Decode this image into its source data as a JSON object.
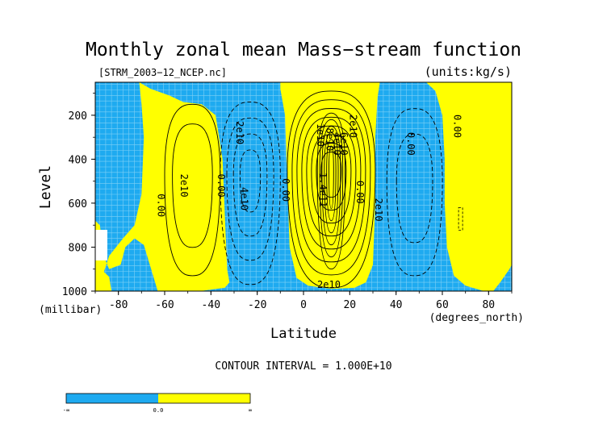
{
  "chart_data": {
    "type": "contour",
    "title": "Monthly zonal mean Mass−stream function",
    "subtitle_left": "[STRM_2003−12_NCEP.nc]",
    "subtitle_right": "(units:kg/s)",
    "xlabel": "Latitude",
    "xunits": "(degrees_north)",
    "ylabel": "Level",
    "yunits": "(millibar)",
    "xlim": [
      -90,
      90
    ],
    "ylim": [
      1000,
      50
    ],
    "xticks": [
      -80,
      -60,
      -40,
      -20,
      0,
      20,
      40,
      60,
      80
    ],
    "yticks": [
      200,
      400,
      600,
      800,
      1000
    ],
    "contour_interval": "CONTOUR INTERVAL = 1.000E+10",
    "colors": {
      "negative": "#1eaaf0",
      "positive": "#ffff00",
      "grid": "#7fd0f5"
    },
    "colorbar": {
      "min_label": "-∞",
      "mid_label": "0.0",
      "max_label": "∞"
    },
    "cells": [
      {
        "name": "southern-positive-cell",
        "sign": "positive",
        "lat_center": -48,
        "lev_center": 470,
        "levels": [
          10000000000.0,
          20000000000.0
        ]
      },
      {
        "name": "southern-negative-cell",
        "sign": "negative",
        "lat_center": -23,
        "lev_center": 470,
        "levels": [
          -10000000000.0,
          -20000000000.0,
          -30000000000.0,
          -40000000000.0
        ]
      },
      {
        "name": "hadley-positive-cell",
        "sign": "positive",
        "lat_center": 12,
        "lev_center": 450,
        "levels": [
          10000000000.0,
          20000000000.0,
          40000000000.0,
          60000000000.0,
          80000000000.0,
          100000000000.0,
          120000000000.0,
          140000000000.0
        ]
      },
      {
        "name": "northern-negative-cell",
        "sign": "negative",
        "lat_center": 48,
        "lev_center": 500,
        "levels": [
          -10000000000.0,
          -20000000000.0
        ]
      }
    ],
    "annotations": [
      {
        "text": "2e10",
        "lat": -53,
        "lev": 520,
        "rotate": -90
      },
      {
        "text": "0.00",
        "lat": -63,
        "lev": 610,
        "rotate": -90
      },
      {
        "text": "0.00",
        "lat": -37,
        "lev": 520,
        "rotate": -90
      },
      {
        "text": "2e10",
        "lat": -29,
        "lev": 280,
        "rotate": -90
      },
      {
        "text": "4e10",
        "lat": -27,
        "lev": 580,
        "rotate": -90
      },
      {
        "text": "0.00",
        "lat": -9,
        "lev": 540,
        "rotate": -90
      },
      {
        "text": "1e10",
        "lat": 6,
        "lev": 290,
        "rotate": -90
      },
      {
        "text": "8e10",
        "lat": 10,
        "lev": 310,
        "rotate": -90
      },
      {
        "text": "4e10",
        "lat": 13,
        "lev": 330,
        "rotate": -90
      },
      {
        "text": "6e10",
        "lat": 16,
        "lev": 330,
        "rotate": -90
      },
      {
        "text": "2e10",
        "lat": 20,
        "lev": 250,
        "rotate": -90
      },
      {
        "text": "1.4e11",
        "lat": 7,
        "lev": 540,
        "rotate": -90
      },
      {
        "text": "2e10",
        "lat": 11,
        "lev": 985,
        "rotate": 0
      },
      {
        "text": "0.00",
        "lat": 23,
        "lev": 550,
        "rotate": -90
      },
      {
        "text": "2e10",
        "lat": 31,
        "lev": 630,
        "rotate": -90
      },
      {
        "text": "0.00",
        "lat": 45,
        "lev": 330,
        "rotate": -90
      },
      {
        "text": "0.00",
        "lat": 65,
        "lev": 250,
        "rotate": -90
      }
    ]
  }
}
